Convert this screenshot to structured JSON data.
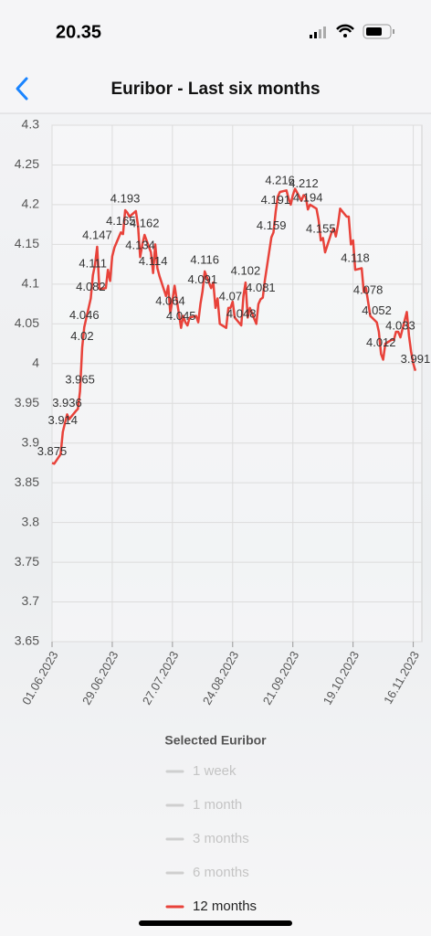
{
  "status_bar": {
    "time": "20.35"
  },
  "nav": {
    "title": "Euribor - Last six months"
  },
  "chart_data": {
    "type": "line",
    "x": [
      "01.06.2023",
      "02.06.2023",
      "05.06.2023",
      "06.06.2023",
      "07.06.2023",
      "08.06.2023",
      "09.06.2023",
      "12.06.2023",
      "13.06.2023",
      "14.06.2023",
      "15.06.2023",
      "16.06.2023",
      "19.06.2023",
      "20.06.2023",
      "21.06.2023",
      "22.06.2023",
      "23.06.2023",
      "26.06.2023",
      "27.06.2023",
      "28.06.2023",
      "29.06.2023",
      "30.06.2023",
      "03.07.2023",
      "04.07.2023",
      "05.07.2023",
      "06.07.2023",
      "07.07.2023",
      "10.07.2023",
      "11.07.2023",
      "12.07.2023",
      "13.07.2023",
      "14.07.2023",
      "17.07.2023",
      "18.07.2023",
      "19.07.2023",
      "20.07.2023",
      "21.07.2023",
      "24.07.2023",
      "25.07.2023",
      "26.07.2023",
      "27.07.2023",
      "28.07.2023",
      "31.07.2023",
      "01.08.2023",
      "02.08.2023",
      "03.08.2023",
      "04.08.2023",
      "07.08.2023",
      "08.08.2023",
      "09.08.2023",
      "10.08.2023",
      "11.08.2023",
      "14.08.2023",
      "15.08.2023",
      "16.08.2023",
      "17.08.2023",
      "18.08.2023",
      "21.08.2023",
      "22.08.2023",
      "23.08.2023",
      "24.08.2023",
      "25.08.2023",
      "28.08.2023",
      "29.08.2023",
      "30.08.2023",
      "31.08.2023",
      "01.09.2023",
      "04.09.2023",
      "05.09.2023",
      "06.09.2023",
      "07.09.2023",
      "08.09.2023",
      "11.09.2023",
      "12.09.2023",
      "13.09.2023",
      "14.09.2023",
      "15.09.2023",
      "18.09.2023",
      "19.09.2023",
      "20.09.2023",
      "21.09.2023",
      "22.09.2023",
      "25.09.2023",
      "26.09.2023",
      "27.09.2023",
      "28.09.2023",
      "29.09.2023",
      "02.10.2023",
      "03.10.2023",
      "04.10.2023",
      "05.10.2023",
      "06.10.2023",
      "09.10.2023",
      "10.10.2023",
      "11.10.2023",
      "12.10.2023",
      "13.10.2023",
      "16.10.2023",
      "17.10.2023",
      "18.10.2023",
      "19.10.2023",
      "20.10.2023",
      "23.10.2023",
      "24.10.2023",
      "25.10.2023",
      "26.10.2023",
      "27.10.2023",
      "30.10.2023",
      "31.10.2023",
      "01.11.2023",
      "02.11.2023",
      "03.11.2023",
      "06.11.2023",
      "07.11.2023",
      "08.11.2023",
      "09.11.2023",
      "10.11.2023",
      "13.11.2023",
      "14.11.2023",
      "15.11.2023",
      "16.11.2023",
      "17.11.2023"
    ],
    "series": [
      {
        "name": "12 months",
        "color": "#e8423a",
        "values": [
          3.875,
          3.874,
          3.886,
          3.914,
          3.925,
          3.936,
          3.93,
          3.94,
          3.943,
          3.965,
          4.02,
          4.046,
          4.082,
          4.111,
          4.125,
          4.147,
          4.094,
          4.095,
          4.118,
          4.104,
          4.135,
          4.146,
          4.165,
          4.163,
          4.193,
          4.19,
          4.185,
          4.192,
          4.173,
          4.134,
          4.15,
          4.162,
          4.14,
          4.114,
          4.15,
          4.12,
          4.11,
          4.085,
          4.098,
          4.064,
          4.08,
          4.098,
          4.045,
          4.06,
          4.052,
          4.048,
          4.058,
          4.06,
          4.052,
          4.075,
          4.091,
          4.116,
          4.095,
          4.102,
          4.07,
          4.082,
          4.05,
          4.045,
          4.07,
          4.07,
          4.078,
          4.058,
          4.048,
          4.085,
          4.102,
          4.058,
          4.07,
          4.05,
          4.075,
          4.081,
          4.083,
          4.105,
          4.159,
          4.165,
          4.191,
          4.21,
          4.216,
          4.218,
          4.208,
          4.2,
          4.212,
          4.22,
          4.205,
          4.212,
          4.21,
          4.194,
          4.2,
          4.195,
          4.18,
          4.155,
          4.158,
          4.14,
          4.165,
          4.17,
          4.16,
          4.175,
          4.195,
          4.185,
          4.185,
          4.15,
          4.155,
          4.118,
          4.12,
          4.09,
          4.095,
          4.078,
          4.06,
          4.052,
          4.04,
          4.012,
          4.005,
          4.025,
          4.03,
          4.03,
          4.04,
          4.04,
          4.033,
          4.065,
          4.035,
          4.015,
          4.0,
          3.991
        ],
        "value_labels": [
          "3.875",
          null,
          null,
          "3.914",
          null,
          "3.936",
          null,
          null,
          null,
          "3.965",
          "4.02",
          "4.046",
          "4.082",
          "4.111",
          null,
          "4.147",
          null,
          null,
          null,
          null,
          null,
          null,
          "4.165",
          null,
          "4.193",
          null,
          null,
          null,
          null,
          "4.134",
          null,
          "4.162",
          null,
          "4.114",
          null,
          null,
          null,
          null,
          null,
          "4.064",
          null,
          null,
          "4.045",
          null,
          null,
          null,
          null,
          null,
          null,
          null,
          "4.091",
          "4.116",
          null,
          null,
          null,
          null,
          null,
          null,
          null,
          "4.07",
          null,
          null,
          "4.048",
          null,
          "4.102",
          null,
          null,
          null,
          null,
          "4.081",
          null,
          null,
          "4.159",
          null,
          "4.191",
          null,
          "4.216",
          null,
          null,
          null,
          null,
          null,
          null,
          "4.212",
          null,
          "4.194",
          null,
          null,
          null,
          "4.155",
          null,
          null,
          null,
          null,
          null,
          null,
          null,
          null,
          null,
          null,
          null,
          "4.118",
          null,
          null,
          null,
          "4.078",
          null,
          "4.052",
          null,
          "4.012",
          null,
          null,
          null,
          null,
          null,
          null,
          "4.033",
          null,
          null,
          null,
          null,
          "3.991"
        ]
      }
    ],
    "xlim": [
      "01.06.2023",
      "20.11.2023"
    ],
    "xticks": [
      "01.06.2023",
      "29.06.2023",
      "27.07.2023",
      "24.08.2023",
      "21.09.2023",
      "19.10.2023",
      "16.11.2023"
    ],
    "ylim": [
      3.65,
      4.3
    ],
    "yticks": [
      3.65,
      3.7,
      3.75,
      3.8,
      3.85,
      3.9,
      3.95,
      4,
      4.05,
      4.1,
      4.15,
      4.2,
      4.25,
      4.3
    ],
    "grid": true
  },
  "legend": {
    "title": "Selected Euribor",
    "inactive": [
      "1 week",
      "1 month",
      "3 months",
      "6 months"
    ]
  }
}
